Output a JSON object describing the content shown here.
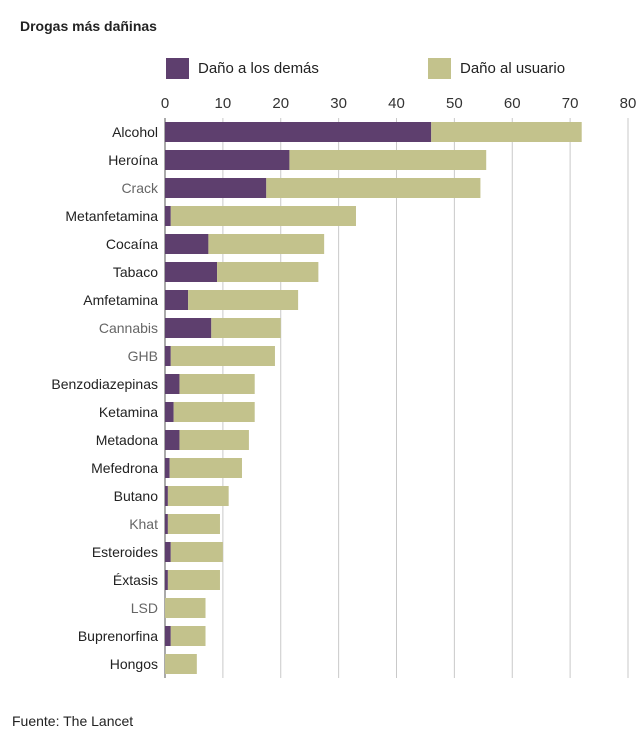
{
  "chart_data": {
    "type": "bar",
    "orientation": "horizontal",
    "stacked": true,
    "title": "Drogas más dañinas",
    "source": "Fuente: The Lancet",
    "xlim": [
      0,
      80
    ],
    "xticks": [
      0,
      10,
      20,
      30,
      40,
      50,
      60,
      70,
      80
    ],
    "grid": true,
    "legend_position": "top",
    "categories": [
      "Alcohol",
      "Heroína",
      "Crack",
      "Metanfetamina",
      "Cocaína",
      "Tabaco",
      "Amfetamina",
      "Cannabis",
      "GHB",
      "Benzodiazepinas",
      "Ketamina",
      "Metadona",
      "Mefedrona",
      "Butano",
      "Khat",
      "Esteroides",
      "Éxtasis",
      "LSD",
      "Buprenorfina",
      "Hongos"
    ],
    "category_label_colors": [
      "#222222",
      "#222222",
      "#666666",
      "#222222",
      "#222222",
      "#222222",
      "#222222",
      "#666666",
      "#666666",
      "#222222",
      "#222222",
      "#222222",
      "#222222",
      "#222222",
      "#666666",
      "#222222",
      "#222222",
      "#666666",
      "#222222",
      "#222222"
    ],
    "series": [
      {
        "name": "Daño a los demás",
        "color": "#5e3f6e",
        "values": [
          46,
          21.5,
          17.5,
          1,
          7.5,
          9,
          4,
          8,
          1,
          2.5,
          1.5,
          2.5,
          0.8,
          0.5,
          0.5,
          1,
          0.5,
          0,
          1,
          0
        ]
      },
      {
        "name": "Daño al usuario",
        "color": "#c3c28c",
        "values": [
          26,
          34,
          37,
          32,
          20,
          17.5,
          19,
          12,
          18,
          13,
          14,
          12,
          12.5,
          10.5,
          9,
          9,
          9,
          7,
          6,
          5.5
        ]
      }
    ]
  }
}
